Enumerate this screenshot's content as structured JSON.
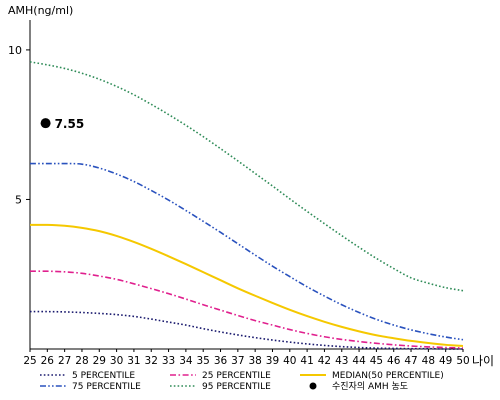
{
  "chart_data": {
    "type": "line",
    "ylabel": "AMH(ng/ml)",
    "xlabel": "나이",
    "xlim": [
      25,
      50
    ],
    "ylim": [
      0,
      11
    ],
    "x_ticks": [
      25,
      26,
      27,
      28,
      29,
      30,
      31,
      32,
      33,
      34,
      35,
      36,
      37,
      38,
      39,
      40,
      41,
      42,
      43,
      44,
      45,
      46,
      47,
      48,
      49,
      50
    ],
    "y_ticks": [
      5,
      10
    ],
    "grid": false,
    "legend_position": "bottom",
    "x": [
      25,
      26,
      27,
      28,
      29,
      30,
      31,
      32,
      33,
      34,
      35,
      36,
      37,
      38,
      39,
      40,
      41,
      42,
      43,
      44,
      45,
      46,
      47,
      48,
      49,
      50
    ],
    "series": [
      {
        "name": "5 PERCENTILE",
        "color": "#1a1a6e",
        "dash": "dot",
        "values": [
          1.25,
          1.25,
          1.24,
          1.22,
          1.19,
          1.15,
          1.09,
          1.0,
          0.9,
          0.8,
          0.68,
          0.57,
          0.47,
          0.38,
          0.3,
          0.23,
          0.17,
          0.12,
          0.08,
          0.05,
          0.03,
          0.02,
          0.01,
          0.01,
          0.0,
          0.0
        ]
      },
      {
        "name": "25 PERCENTILE",
        "color": "#e0208e",
        "dash": "dashdot",
        "values": [
          2.6,
          2.6,
          2.58,
          2.53,
          2.44,
          2.33,
          2.18,
          2.02,
          1.85,
          1.67,
          1.48,
          1.3,
          1.12,
          0.95,
          0.8,
          0.65,
          0.52,
          0.41,
          0.32,
          0.25,
          0.19,
          0.14,
          0.1,
          0.07,
          0.05,
          0.03
        ]
      },
      {
        "name": "MEDIAN(50 PERCENTILE)",
        "color": "#f5c800",
        "dash": "solid",
        "values": [
          4.15,
          4.15,
          4.12,
          4.05,
          3.94,
          3.78,
          3.58,
          3.35,
          3.1,
          2.84,
          2.57,
          2.3,
          2.03,
          1.78,
          1.54,
          1.31,
          1.1,
          0.91,
          0.74,
          0.59,
          0.46,
          0.36,
          0.27,
          0.2,
          0.14,
          0.1
        ]
      },
      {
        "name": "75 PERCENTILE",
        "color": "#2a52be",
        "dash": "dashdotdot",
        "values": [
          6.2,
          6.2,
          6.2,
          6.18,
          6.05,
          5.85,
          5.6,
          5.3,
          4.98,
          4.63,
          4.27,
          3.9,
          3.52,
          3.14,
          2.77,
          2.42,
          2.08,
          1.77,
          1.48,
          1.22,
          0.99,
          0.8,
          0.64,
          0.51,
          0.4,
          0.31
        ]
      },
      {
        "name": "95 PERCENTILE",
        "color": "#2e8b57",
        "dash": "dot",
        "values": [
          9.6,
          9.5,
          9.38,
          9.22,
          9.02,
          8.78,
          8.5,
          8.18,
          7.84,
          7.48,
          7.1,
          6.7,
          6.29,
          5.87,
          5.45,
          5.02,
          4.6,
          4.19,
          3.79,
          3.4,
          3.03,
          2.69,
          2.38,
          2.2,
          2.05,
          1.95
        ]
      }
    ],
    "marker": {
      "name": "수진자의 AMH 농도",
      "x": 25.9,
      "y": 7.55,
      "label": "7.55",
      "color": "#000000"
    }
  }
}
